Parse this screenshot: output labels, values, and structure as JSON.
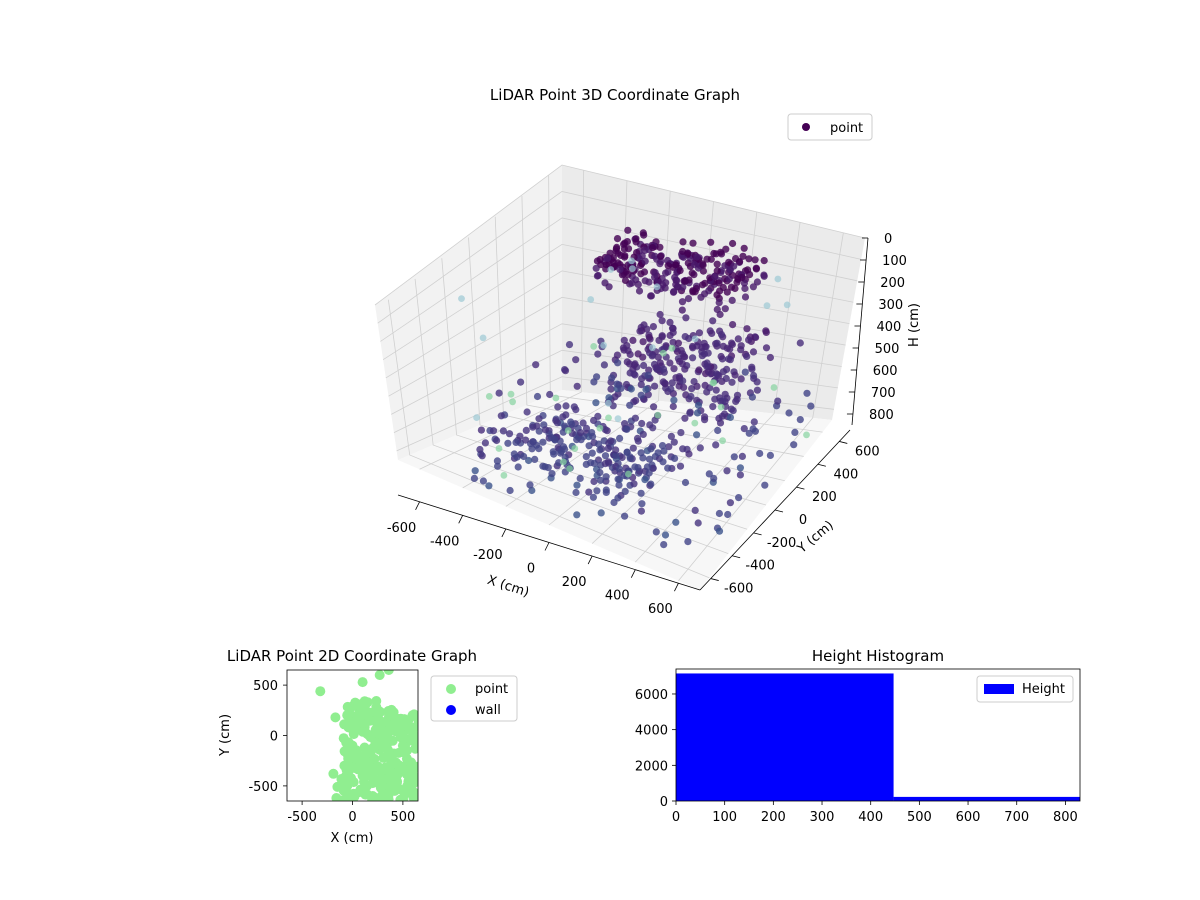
{
  "chart_data": [
    {
      "type": "scatter3d",
      "title": "LiDAR Point 3D Coordinate Graph",
      "xlabel": "X (cm)",
      "ylabel": "Y (cm)",
      "zlabel": "H (cm)",
      "xlim": [
        -700,
        700
      ],
      "ylim": [
        -700,
        700
      ],
      "zlim": [
        850,
        0
      ],
      "x_ticks": [
        "-600",
        "-400",
        "-200",
        "0",
        "200",
        "400",
        "600"
      ],
      "y_ticks": [
        "-600",
        "-400",
        "-200",
        "0",
        "200",
        "400",
        "600"
      ],
      "z_ticks": [
        "0",
        "100",
        "200",
        "300",
        "400",
        "500",
        "600",
        "700",
        "800"
      ],
      "grid": true,
      "legend": {
        "position": "top-right",
        "entries": [
          "point"
        ]
      },
      "colormap": "viridis",
      "series": [
        {
          "name": "point",
          "color": "#440154",
          "description_clusters": [
            {
              "x_range": [
                -350,
                300
              ],
              "y_range": [
                300,
                700
              ],
              "h_range": [
                150,
                260
              ]
            },
            {
              "x_range": [
                -50,
                500
              ],
              "y_range": [
                -100,
                400
              ],
              "h_range": [
                300,
                550
              ]
            },
            {
              "x_range": [
                -500,
                700
              ],
              "y_range": [
                -700,
                700
              ],
              "h_range": [
                500,
                850
              ]
            },
            {
              "x_range": [
                -300,
                300
              ],
              "y_range": [
                -500,
                0
              ],
              "h_range": [
                600,
                800
              ]
            }
          ]
        }
      ]
    },
    {
      "type": "scatter",
      "title": "LiDAR Point 2D Coordinate Graph",
      "xlabel": "X (cm)",
      "ylabel": "Y (cm)",
      "xlim": [
        -650,
        650
      ],
      "ylim": [
        -650,
        650
      ],
      "x_ticks": [
        "-500",
        "0",
        "500"
      ],
      "y_ticks": [
        "-500",
        "0",
        "500"
      ],
      "legend": {
        "position": "outside-right",
        "entries": [
          {
            "name": "point",
            "color": "#90ee90"
          },
          {
            "name": "wall",
            "color": "#0000ff"
          }
        ]
      },
      "series": [
        {
          "name": "point",
          "color": "#90ee90",
          "points": [
            [
              -320,
              440
            ],
            [
              100,
              530
            ],
            [
              270,
              600
            ],
            [
              360,
              650
            ],
            [
              -170,
              180
            ],
            [
              -190,
              -380
            ],
            [
              -150,
              -510
            ],
            [
              -160,
              -620
            ],
            [
              480,
              160
            ],
            [
              430,
              40
            ],
            [
              380,
              -200
            ],
            [
              300,
              -450
            ],
            [
              420,
              -550
            ],
            [
              600,
              -300
            ],
            [
              620,
              0
            ],
            [
              560,
              90
            ],
            [
              150,
              330
            ],
            [
              -40,
              80
            ],
            [
              0,
              -100
            ],
            [
              -80,
              -300
            ],
            [
              200,
              -600
            ],
            [
              50,
              200
            ],
            [
              250,
              250
            ],
            [
              500,
              -100
            ],
            [
              100,
              -400
            ]
          ]
        },
        {
          "name": "wall",
          "color": "#0000ff",
          "points": []
        }
      ]
    },
    {
      "type": "histogram",
      "title": "Height Histogram",
      "xlabel": "",
      "ylabel": "",
      "xlim": [
        0,
        830
      ],
      "ylim": [
        0,
        7400
      ],
      "x_ticks": [
        "0",
        "100",
        "200",
        "300",
        "400",
        "500",
        "600",
        "700",
        "800"
      ],
      "y_ticks": [
        "0",
        "2000",
        "4000",
        "6000"
      ],
      "legend": {
        "position": "top-right",
        "entries": [
          "Height"
        ]
      },
      "series": [
        {
          "name": "Height",
          "color": "#0000ff",
          "bins": [
            {
              "from": 0,
              "to": 447,
              "count": 7150
            },
            {
              "from": 447,
              "to": 830,
              "count": 230
            }
          ]
        }
      ]
    }
  ]
}
